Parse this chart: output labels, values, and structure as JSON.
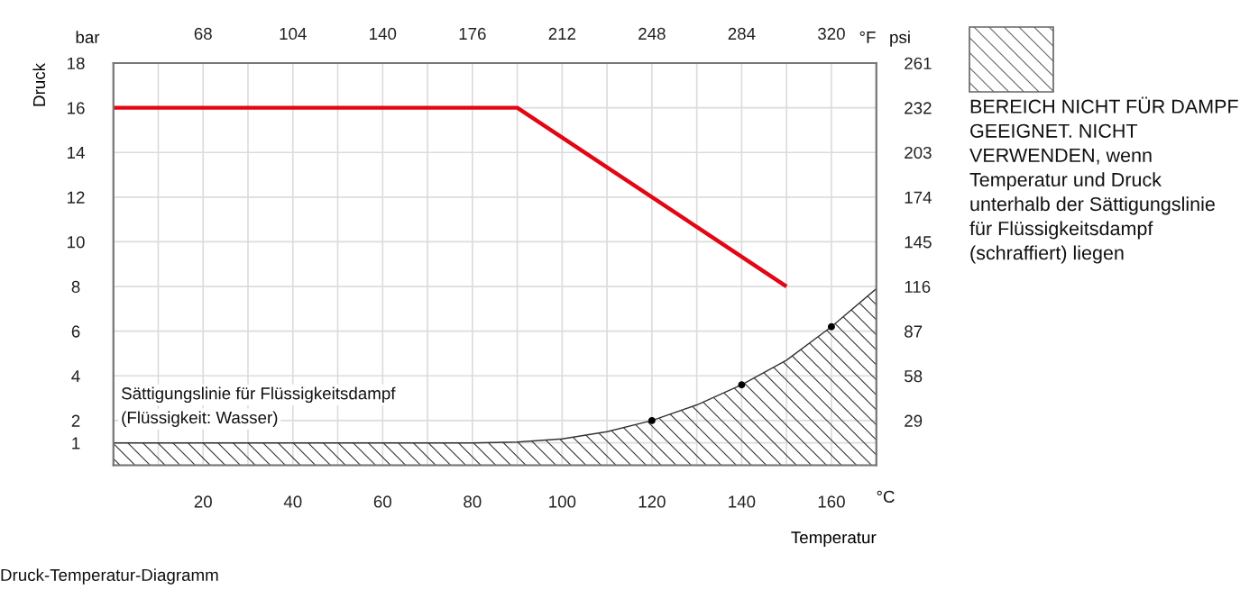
{
  "chart_data": {
    "type": "line",
    "xlabel": "Temperatur",
    "ylabel": "Druck",
    "xlim": [
      0,
      170
    ],
    "xticks": [
      {
        "value": 10,
        "label": null
      },
      20,
      {
        "value": 30,
        "label": null
      },
      40,
      {
        "value": 50,
        "label": null
      },
      60,
      {
        "value": 70,
        "label": null
      },
      80,
      {
        "value": 90,
        "label": null
      },
      100,
      {
        "value": 110,
        "label": null
      },
      120,
      {
        "value": 130,
        "label": null
      },
      140,
      {
        "value": 150,
        "label": null
      },
      160
    ],
    "x2lim": [
      32,
      338
    ],
    "x2ticks": [
      68,
      104,
      140,
      176,
      212,
      248,
      284,
      320
    ],
    "ylim": [
      0,
      18
    ],
    "yticks": [
      1,
      2,
      4,
      6,
      8,
      10,
      12,
      14,
      16,
      18
    ],
    "y2lim": [
      0,
      261
    ],
    "y2ticks": [
      29,
      58,
      87,
      116,
      145,
      174,
      203,
      232,
      261
    ],
    "grid": true,
    "legend": "right",
    "series": [
      {
        "type": "area",
        "name": "BEREICH NICHT FÜR DAMPF GEEIGNET. NICHT VERWENDEN, wenn Temperatur und Druck unterhalb der Sättigungslinie für Flüssigkeitsdampf (schraffiert) liegen",
        "color": "#333333",
        "x": [
          0,
          80,
          90,
          100,
          110,
          120,
          130,
          140,
          150,
          160,
          170
        ],
        "values": [
          1,
          1,
          1.04,
          1.18,
          1.5,
          2,
          2.7,
          3.6,
          4.7,
          6.2,
          7.9
        ]
      },
      {
        "type": "scatter",
        "color": "#000000",
        "marker": "circle",
        "x": [
          120,
          140,
          160
        ],
        "values": [
          2,
          3.6,
          6.2
        ]
      },
      {
        "color": "#e30613",
        "x": [
          0,
          90,
          150
        ],
        "values": [
          16,
          16,
          8
        ]
      }
    ],
    "annotations": [
      "Sättigungslinie für Flüssigkeitsdampf",
      "(Flüssigkeit: Wasser)",
      "bar",
      "°F",
      "psi",
      "°C",
      "Druck-Temperatur-Diagramm"
    ]
  }
}
